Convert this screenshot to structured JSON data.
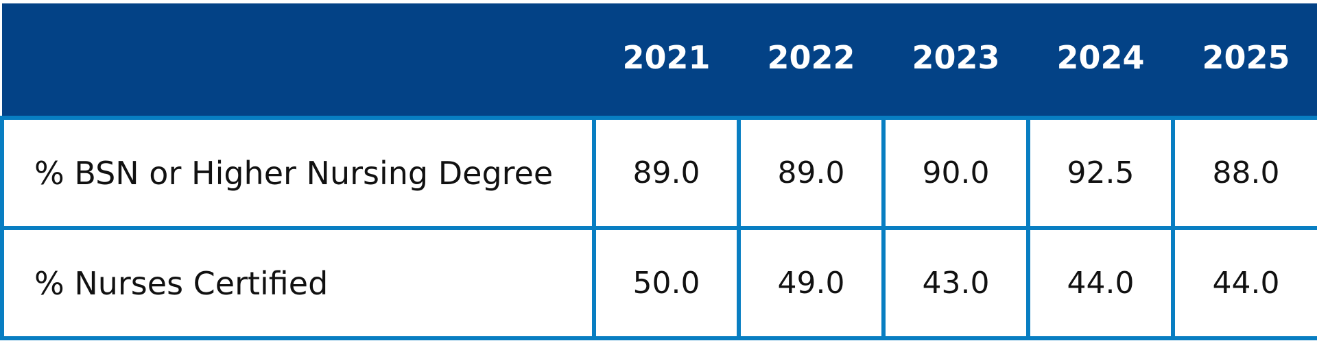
{
  "chart_data": {
    "type": "table",
    "columns": [
      "",
      "2021",
      "2022",
      "2023",
      "2024",
      "2025"
    ],
    "rows": [
      {
        "label": "% BSN or Higher Nursing Degree",
        "values": [
          "89.0",
          "89.0",
          "90.0",
          "92.5",
          "88.0"
        ]
      },
      {
        "label": "% Nurses Certified",
        "values": [
          "50.0",
          "49.0",
          "43.0",
          "44.0",
          "44.0"
        ]
      }
    ]
  },
  "colors": {
    "header_background": "#034286",
    "header_text": "#ffffff",
    "border": "#087ec2",
    "body_text": "#111111"
  }
}
